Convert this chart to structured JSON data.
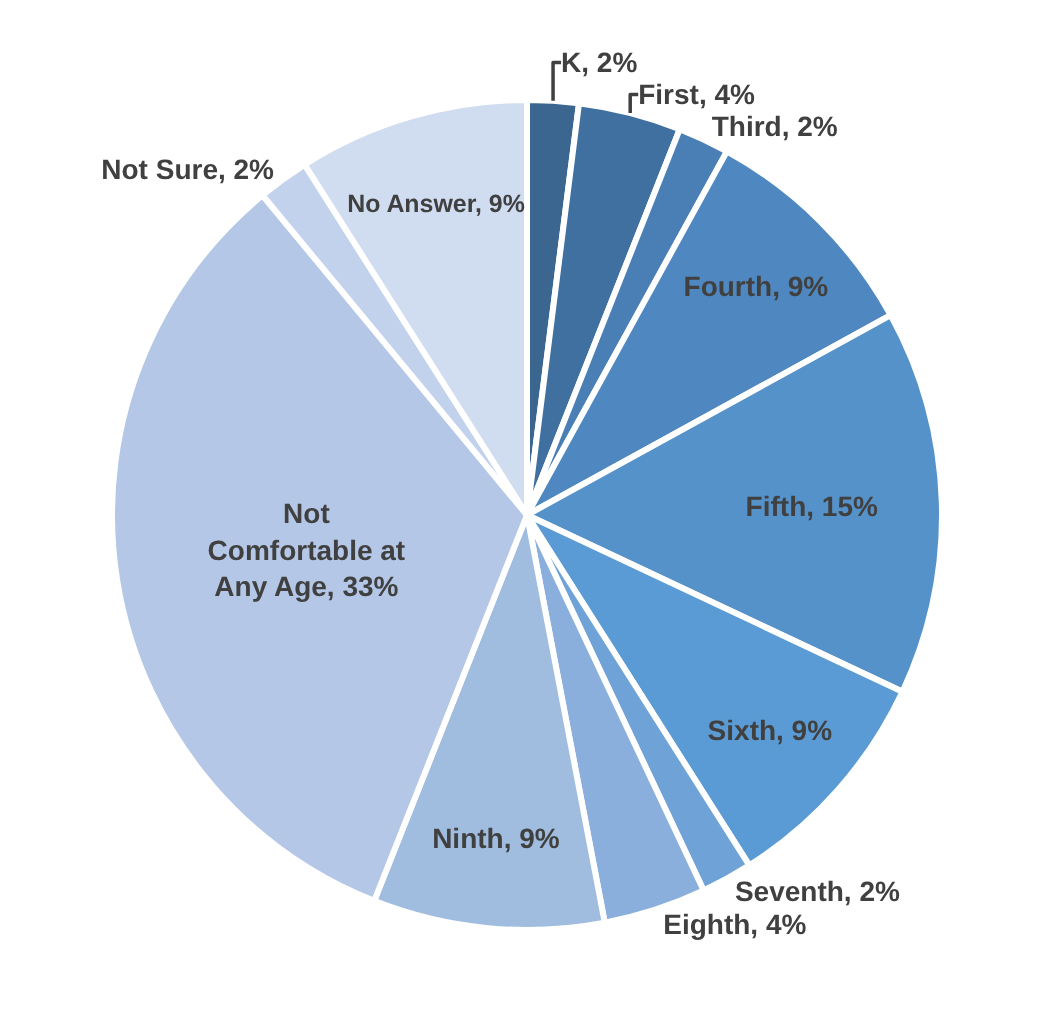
{
  "chart_data": {
    "type": "pie",
    "categories": [
      "K",
      "First",
      "Third",
      "Fourth",
      "Fifth",
      "Sixth",
      "Seventh",
      "Eighth",
      "Ninth",
      "Not Comfortable at Any Age",
      "Not Sure",
      "No Answer"
    ],
    "values": [
      2,
      4,
      2,
      9,
      15,
      9,
      2,
      4,
      9,
      33,
      2,
      9
    ],
    "value_labels": [
      "2%",
      "4%",
      "2%",
      "9%",
      "15%",
      "9%",
      "2%",
      "4%",
      "9%",
      "33%",
      "2%",
      "9%"
    ],
    "colors": [
      "#3a6690",
      "#40709f",
      "#4a7fb6",
      "#4f88c0",
      "#5592c9",
      "#5b9bd5",
      "#6fa3d7",
      "#8aafdc",
      "#a0bde0",
      "#b4c7e7",
      "#c3d2ec",
      "#d0dcef"
    ],
    "legend": false
  }
}
